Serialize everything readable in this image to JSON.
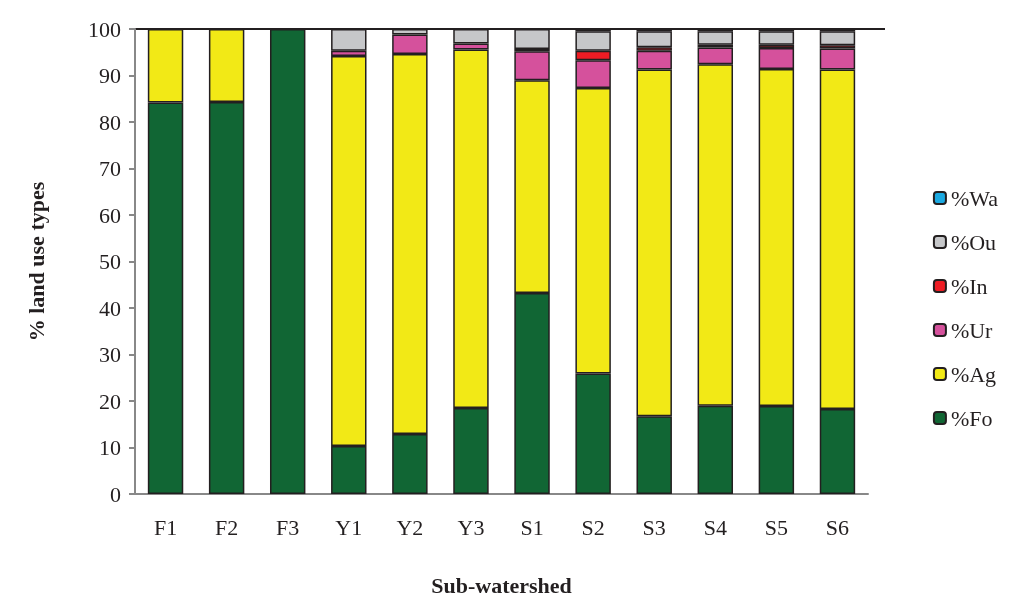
{
  "chart_data": {
    "type": "bar",
    "stacked": true,
    "xlabel": "Sub-watershed",
    "ylabel": "% land use types",
    "categories": [
      "F1",
      "F2",
      "F3",
      "Y1",
      "Y2",
      "Y3",
      "S1",
      "S2",
      "S3",
      "S4",
      "S5",
      "S6"
    ],
    "series": [
      {
        "name": "%Fo",
        "color": "#116634",
        "values": [
          84.2,
          84.3,
          100,
          10.3,
          12.9,
          18.5,
          43.2,
          25.9,
          16.7,
          19.0,
          18.9,
          18.3
        ]
      },
      {
        "name": "%Ag",
        "color": "#f2e916",
        "values": [
          15.8,
          15.7,
          null,
          83.9,
          81.7,
          77.1,
          45.8,
          61.4,
          74.6,
          73.4,
          72.5,
          73.0
        ]
      },
      {
        "name": "%Ur",
        "color": "#d5519c",
        "values": [
          null,
          null,
          null,
          1.1,
          4.2,
          1.3,
          6.2,
          6.0,
          4.0,
          3.6,
          4.5,
          4.5
        ]
      },
      {
        "name": "%In",
        "color": "#ee1c24",
        "values": [
          null,
          null,
          null,
          null,
          null,
          null,
          0.5,
          2.0,
          0.8,
          0.6,
          0.7,
          0.7
        ]
      },
      {
        "name": "%Ou",
        "color": "#c6c7c9",
        "values": [
          null,
          null,
          null,
          4.7,
          1.2,
          3.1,
          4.3,
          4.2,
          3.4,
          2.9,
          2.9,
          3.0
        ]
      },
      {
        "name": "%Wa",
        "color": "#1ba9e1",
        "values": [
          null,
          null,
          null,
          null,
          null,
          null,
          null,
          0.5,
          0.5,
          0.5,
          0.5,
          0.5
        ]
      }
    ],
    "ylim": [
      0,
      100
    ],
    "yticks": [
      0,
      10,
      20,
      30,
      40,
      50,
      60,
      70,
      80,
      90,
      100
    ],
    "grid": false,
    "legend": "right"
  }
}
